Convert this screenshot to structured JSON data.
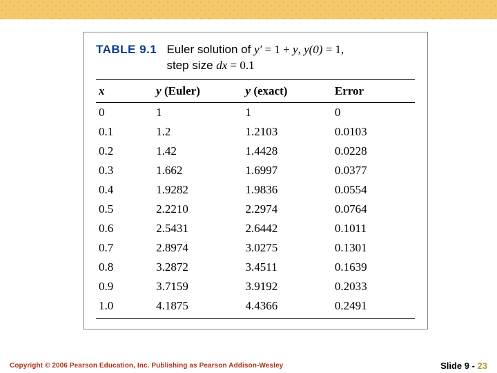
{
  "caption": {
    "table_label": "TABLE 9.1",
    "title_part1": "Euler solution of ",
    "eq_lhs": "y′",
    "eq_eq1": " = 1 + ",
    "eq_y": "y",
    "eq_comma": ", ",
    "ic_lhs": "y(0)",
    "ic_eq": " = 1,",
    "line2_a": "step size ",
    "dx": "dx",
    "dx_eq": " = 0.1"
  },
  "headers": {
    "x": "x",
    "ye_y": "y",
    "ye_rest": " (Euler)",
    "yex_y": "y",
    "yex_rest": " (exact)",
    "err": "Error"
  },
  "rows": [
    {
      "x": "0",
      "ye": "1",
      "yex": "1",
      "err": "0"
    },
    {
      "x": "0.1",
      "ye": "1.2",
      "yex": "1.2103",
      "err": "0.0103"
    },
    {
      "x": "0.2",
      "ye": "1.42",
      "yex": "1.4428",
      "err": "0.0228"
    },
    {
      "x": "0.3",
      "ye": "1.662",
      "yex": "1.6997",
      "err": "0.0377"
    },
    {
      "x": "0.4",
      "ye": "1.9282",
      "yex": "1.9836",
      "err": "0.0554"
    },
    {
      "x": "0.5",
      "ye": "2.2210",
      "yex": "2.2974",
      "err": "0.0764"
    },
    {
      "x": "0.6",
      "ye": "2.5431",
      "yex": "2.6442",
      "err": "0.1011"
    },
    {
      "x": "0.7",
      "ye": "2.8974",
      "yex": "3.0275",
      "err": "0.1301"
    },
    {
      "x": "0.8",
      "ye": "3.2872",
      "yex": "3.4511",
      "err": "0.1639"
    },
    {
      "x": "0.9",
      "ye": "3.7159",
      "yex": "3.9192",
      "err": "0.2033"
    },
    {
      "x": "1.0",
      "ye": "4.1875",
      "yex": "4.4366",
      "err": "0.2491"
    }
  ],
  "footer": {
    "copyright": "Copyright © 2006 Pearson Education, Inc.  Publishing as Pearson Addison-Wesley",
    "slide_label": "Slide 9 - ",
    "slide_page": "23"
  }
}
